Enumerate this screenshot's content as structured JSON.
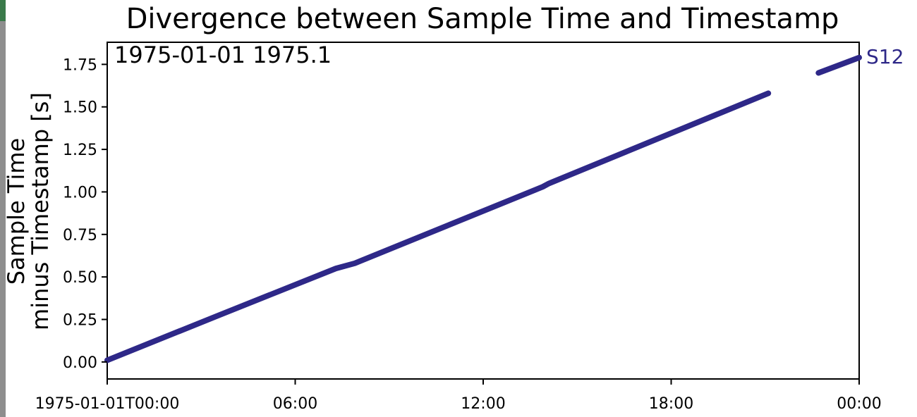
{
  "chart_data": {
    "type": "line",
    "title": "Divergence between Sample Time and Timestamp",
    "ylabel_lines": [
      "Sample Time",
      "minus Timestamp [s]"
    ],
    "xlabel": "",
    "annotation": "1975-01-01 1975.1",
    "x_tick_labels": [
      "1975-01-01T00:00",
      "06:00",
      "12:00",
      "18:00",
      "00:00"
    ],
    "x_ticks_hours": [
      0,
      6,
      12,
      18,
      24
    ],
    "xlim_hours": [
      0,
      24
    ],
    "x_unit": "hours from 1975-01-01T00:00",
    "y_ticks": [
      0.0,
      0.25,
      0.5,
      0.75,
      1.0,
      1.25,
      1.5,
      1.75
    ],
    "y_tick_labels": [
      "0.00",
      "0.25",
      "0.50",
      "0.75",
      "1.00",
      "1.25",
      "1.50",
      "1.75"
    ],
    "ylim": [
      -0.1,
      1.88
    ],
    "grid": false,
    "series": [
      {
        "name": "S12",
        "color": "#2e2888",
        "segments": [
          {
            "x": [
              0.0,
              3.5,
              7.3,
              7.9,
              13.9,
              14.1,
              21.1
            ],
            "y": [
              0.01,
              0.27,
              0.55,
              0.58,
              1.03,
              1.05,
              1.58
            ]
          },
          {
            "x": [
              22.7,
              24.0
            ],
            "y": [
              1.7,
              1.79
            ]
          }
        ]
      }
    ]
  }
}
